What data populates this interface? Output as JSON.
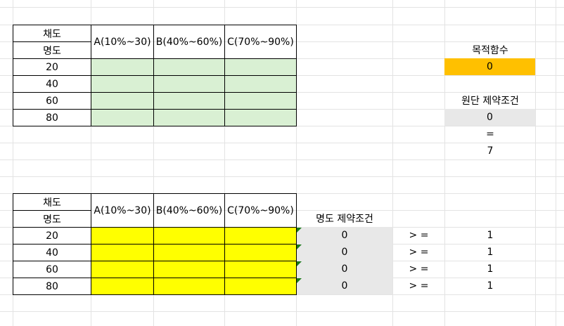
{
  "table1": {
    "header_top": "채도",
    "header_bottom": "명도",
    "columns": [
      "A(10%~30)",
      "B(40%~60%)",
      "C(70%~90%)"
    ],
    "rows": [
      "20",
      "40",
      "60",
      "80"
    ]
  },
  "table2": {
    "header_top": "채도",
    "header_bottom": "명도",
    "columns": [
      "A(10%~30)",
      "B(40%~60%)",
      "C(70%~90%)"
    ],
    "rows": [
      "20",
      "40",
      "60",
      "80"
    ]
  },
  "objective": {
    "label": "목적함수",
    "value": "0"
  },
  "fabric_constraint": {
    "label": "원단 제약조건",
    "value": "0",
    "operator": "=",
    "rhs": "7"
  },
  "brightness_constraint": {
    "label": "명도 제약조건",
    "values": [
      "0",
      "0",
      "0",
      "0"
    ],
    "operators": [
      "> =",
      "> =",
      "> =",
      "> ="
    ],
    "rhs": [
      "1",
      "1",
      "1",
      "1"
    ]
  },
  "colors": {
    "green": "#d9f0d3",
    "yellow": "#ffff00",
    "orange": "#ffc000",
    "gray": "#e8e8e8"
  }
}
